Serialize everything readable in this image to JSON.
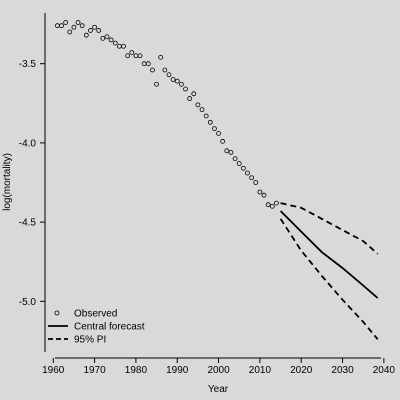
{
  "chart_data": {
    "type": "scatter",
    "xlabel": "Year",
    "ylabel": "log(mortality)",
    "xlim": [
      1958,
      2041
    ],
    "ylim": [
      -5.32,
      -3.18
    ],
    "x_ticks": [
      1960,
      1970,
      1980,
      1990,
      2000,
      2010,
      2020,
      2030,
      2040
    ],
    "y_ticks": [
      -3.5,
      -4.0,
      -4.5,
      -5.0
    ],
    "y_tick_labels": [
      "-3.5",
      "-4.0",
      "-4.5",
      "-5.0"
    ],
    "grid": false,
    "legend_position": "bottom-left",
    "colors": {
      "background": "#d9d9d9",
      "ink": "#000000"
    },
    "legend": [
      {
        "label": "Observed",
        "style": "points"
      },
      {
        "label": "Central forecast",
        "style": "solid"
      },
      {
        "label": "95% PI",
        "style": "dashed"
      }
    ],
    "series": [
      {
        "name": "Observed",
        "style": "points",
        "points": [
          [
            1961,
            -3.26
          ],
          [
            1962,
            -3.26
          ],
          [
            1963,
            -3.24
          ],
          [
            1964,
            -3.3
          ],
          [
            1965,
            -3.27
          ],
          [
            1966,
            -3.24
          ],
          [
            1967,
            -3.26
          ],
          [
            1968,
            -3.32
          ],
          [
            1969,
            -3.29
          ],
          [
            1970,
            -3.27
          ],
          [
            1971,
            -3.29
          ],
          [
            1972,
            -3.34
          ],
          [
            1973,
            -3.33
          ],
          [
            1974,
            -3.35
          ],
          [
            1975,
            -3.37
          ],
          [
            1976,
            -3.39
          ],
          [
            1977,
            -3.39
          ],
          [
            1978,
            -3.45
          ],
          [
            1979,
            -3.43
          ],
          [
            1980,
            -3.45
          ],
          [
            1981,
            -3.45
          ],
          [
            1982,
            -3.5
          ],
          [
            1983,
            -3.5
          ],
          [
            1984,
            -3.54
          ],
          [
            1985,
            -3.63
          ],
          [
            1986,
            -3.46
          ],
          [
            1987,
            -3.54
          ],
          [
            1988,
            -3.57
          ],
          [
            1989,
            -3.6
          ],
          [
            1990,
            -3.61
          ],
          [
            1991,
            -3.63
          ],
          [
            1992,
            -3.66
          ],
          [
            1993,
            -3.72
          ],
          [
            1994,
            -3.69
          ],
          [
            1995,
            -3.76
          ],
          [
            1996,
            -3.79
          ],
          [
            1997,
            -3.83
          ],
          [
            1998,
            -3.87
          ],
          [
            1999,
            -3.91
          ],
          [
            2000,
            -3.94
          ],
          [
            2001,
            -3.99
          ],
          [
            2002,
            -4.05
          ],
          [
            2003,
            -4.06
          ],
          [
            2004,
            -4.1
          ],
          [
            2005,
            -4.13
          ],
          [
            2006,
            -4.16
          ],
          [
            2007,
            -4.19
          ],
          [
            2008,
            -4.22
          ],
          [
            2009,
            -4.25
          ],
          [
            2010,
            -4.31
          ],
          [
            2011,
            -4.33
          ],
          [
            2012,
            -4.39
          ],
          [
            2013,
            -4.4
          ],
          [
            2014,
            -4.38
          ]
        ]
      },
      {
        "name": "Central forecast",
        "style": "solid",
        "points": [
          [
            2015,
            -4.43
          ],
          [
            2020,
            -4.56
          ],
          [
            2025,
            -4.69
          ],
          [
            2030,
            -4.79
          ],
          [
            2035,
            -4.9
          ],
          [
            2038.5,
            -4.98
          ]
        ]
      },
      {
        "name": "95% PI",
        "style": "dashed",
        "points": [
          [
            2015,
            -4.38
          ],
          [
            2020,
            -4.41
          ],
          [
            2025,
            -4.48
          ],
          [
            2030,
            -4.55
          ],
          [
            2035,
            -4.62
          ],
          [
            2038.5,
            -4.7
          ]
        ]
      },
      {
        "name": "95% PI",
        "style": "dashed",
        "points": [
          [
            2015,
            -4.48
          ],
          [
            2020,
            -4.68
          ],
          [
            2025,
            -4.84
          ],
          [
            2030,
            -4.99
          ],
          [
            2035,
            -5.13
          ],
          [
            2038.5,
            -5.24
          ]
        ]
      }
    ]
  }
}
